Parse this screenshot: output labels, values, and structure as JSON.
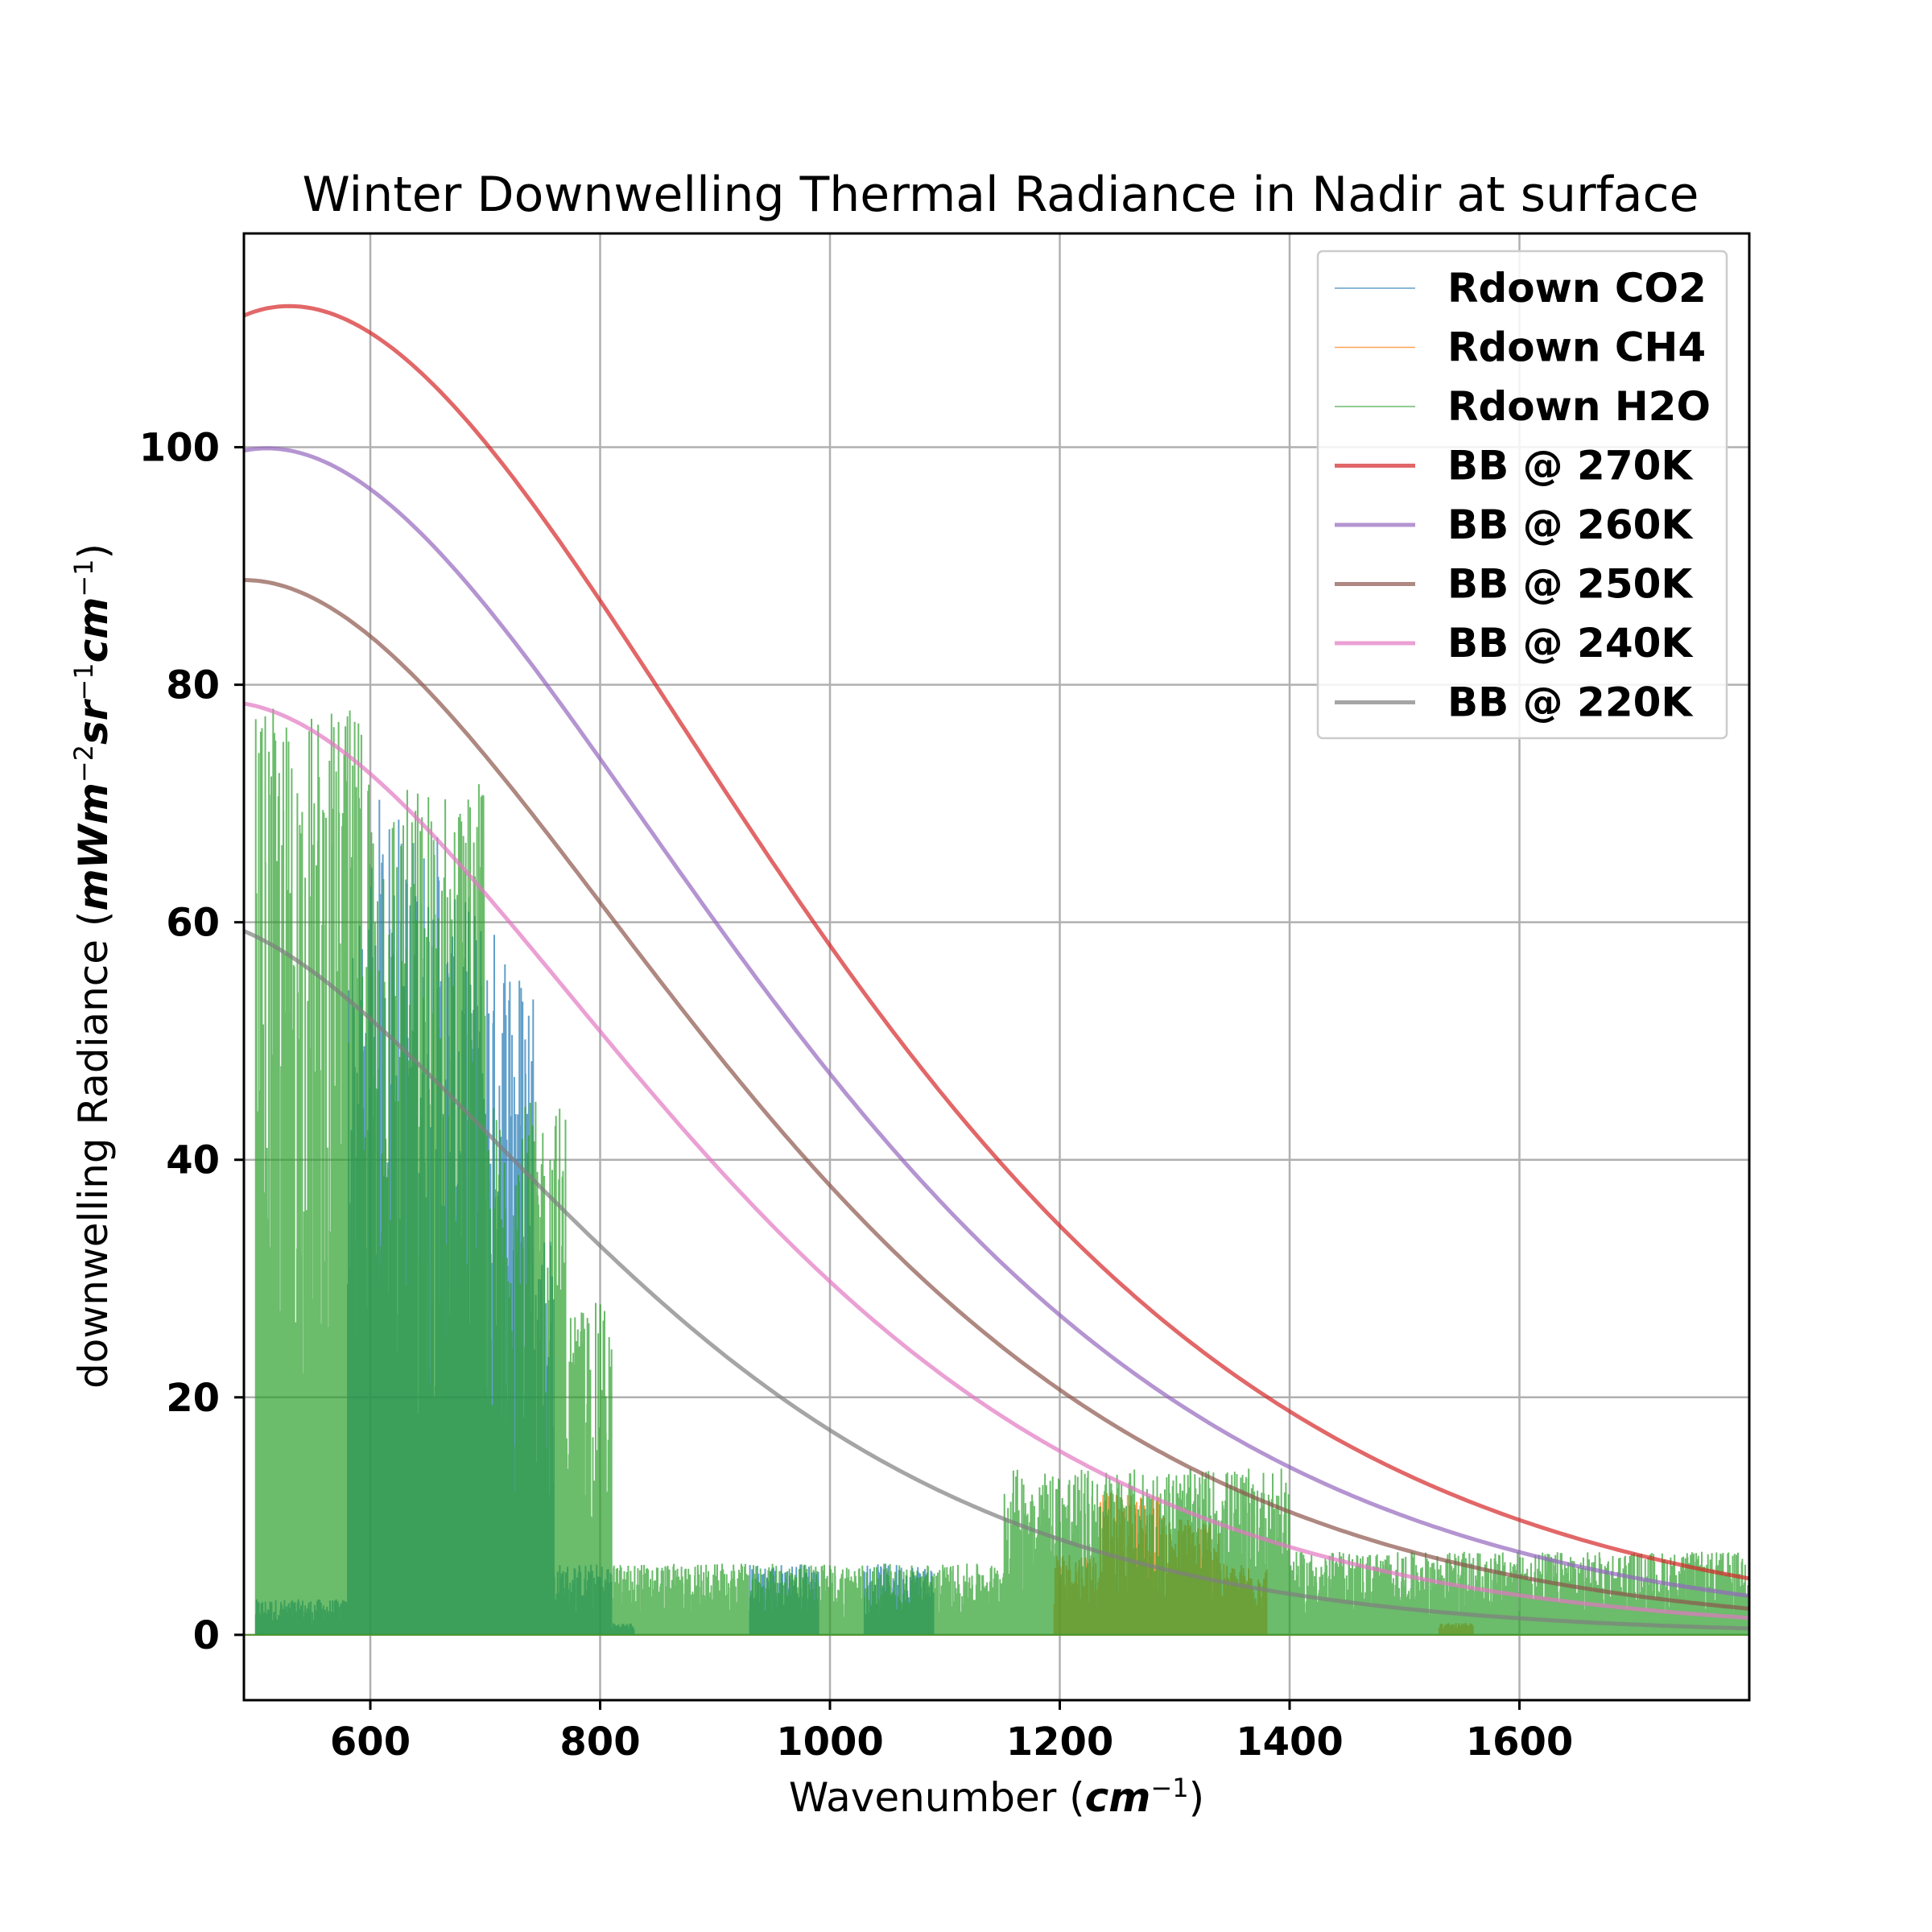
{
  "chart_data": {
    "type": "line",
    "title": "Winter Downwelling Thermal Radiance in Nadir at surface",
    "xlabel_prefix": "Wavenumber (",
    "xlabel_unit": "cm",
    "xlabel_exp": "−1",
    "xlabel_suffix": ")",
    "ylabel_prefix": "downwelling Radiance (",
    "ylabel_unit_a": "mWm",
    "ylabel_exp_a": "−2",
    "ylabel_unit_b": "sr",
    "ylabel_exp_b": "−1",
    "ylabel_unit_c": "cm",
    "ylabel_exp_c": "−1",
    "ylabel_suffix": ")",
    "xlim": [
      490,
      1800
    ],
    "ylim": [
      -5.5,
      118
    ],
    "xticks": [
      600,
      800,
      1000,
      1200,
      1400,
      1600
    ],
    "yticks": [
      0,
      20,
      40,
      60,
      80,
      100
    ],
    "grid": true,
    "legend_position": "top-right",
    "series": [
      {
        "name": "Rdown CO2",
        "kind": "spectrum",
        "color": "#1f77b4",
        "alpha": 0.7,
        "bands": [
          {
            "x0": 500,
            "x1": 580,
            "peak": 3
          },
          {
            "x0": 580,
            "x1": 600,
            "peak": 60
          },
          {
            "x0": 600,
            "x1": 625,
            "peak": 71
          },
          {
            "x0": 625,
            "x1": 660,
            "peak": 68
          },
          {
            "x0": 660,
            "x1": 700,
            "peak": 62
          },
          {
            "x0": 700,
            "x1": 725,
            "peak": 60
          },
          {
            "x0": 725,
            "x1": 745,
            "peak": 57
          },
          {
            "x0": 745,
            "x1": 760,
            "peak": 35
          },
          {
            "x0": 760,
            "x1": 810,
            "peak": 6
          },
          {
            "x0": 810,
            "x1": 830,
            "peak": 1
          },
          {
            "x0": 930,
            "x1": 990,
            "peak": 6
          },
          {
            "x0": 1030,
            "x1": 1090,
            "peak": 6
          }
        ]
      },
      {
        "name": "Rdown CH4",
        "kind": "spectrum",
        "color": "#ff7f0e",
        "alpha": 0.7,
        "bands": [
          {
            "x0": 1195,
            "x1": 1235,
            "peak": 7
          },
          {
            "x0": 1235,
            "x1": 1290,
            "peak": 12
          },
          {
            "x0": 1290,
            "x1": 1340,
            "peak": 10
          },
          {
            "x0": 1340,
            "x1": 1380,
            "peak": 6
          },
          {
            "x0": 1530,
            "x1": 1560,
            "peak": 1
          }
        ]
      },
      {
        "name": "Rdown H2O",
        "kind": "spectrum",
        "color": "#2ca02c",
        "alpha": 0.7,
        "bands": [
          {
            "x0": 500,
            "x1": 600,
            "peak": 78
          },
          {
            "x0": 600,
            "x1": 700,
            "peak": 72
          },
          {
            "x0": 700,
            "x1": 770,
            "peak": 45
          },
          {
            "x0": 770,
            "x1": 810,
            "peak": 28
          },
          {
            "x0": 810,
            "x1": 1150,
            "peak": 6
          },
          {
            "x0": 1150,
            "x1": 1400,
            "peak": 14
          },
          {
            "x0": 1400,
            "x1": 1800,
            "peak": 7
          }
        ]
      },
      {
        "name": "BB @ 270K",
        "kind": "planck",
        "temperature": 270,
        "color": "#d62728",
        "alpha": 0.7
      },
      {
        "name": "BB @ 260K",
        "kind": "planck",
        "temperature": 260,
        "color": "#9467bd",
        "alpha": 0.7
      },
      {
        "name": "BB @ 250K",
        "kind": "planck",
        "temperature": 250,
        "color": "#8c564b",
        "alpha": 0.7
      },
      {
        "name": "BB @ 240K",
        "kind": "planck",
        "temperature": 240,
        "color": "#e377c2",
        "alpha": 0.7
      },
      {
        "name": "BB @ 220K",
        "kind": "planck",
        "temperature": 220,
        "color": "#7f7f7f",
        "alpha": 0.7
      }
    ]
  }
}
